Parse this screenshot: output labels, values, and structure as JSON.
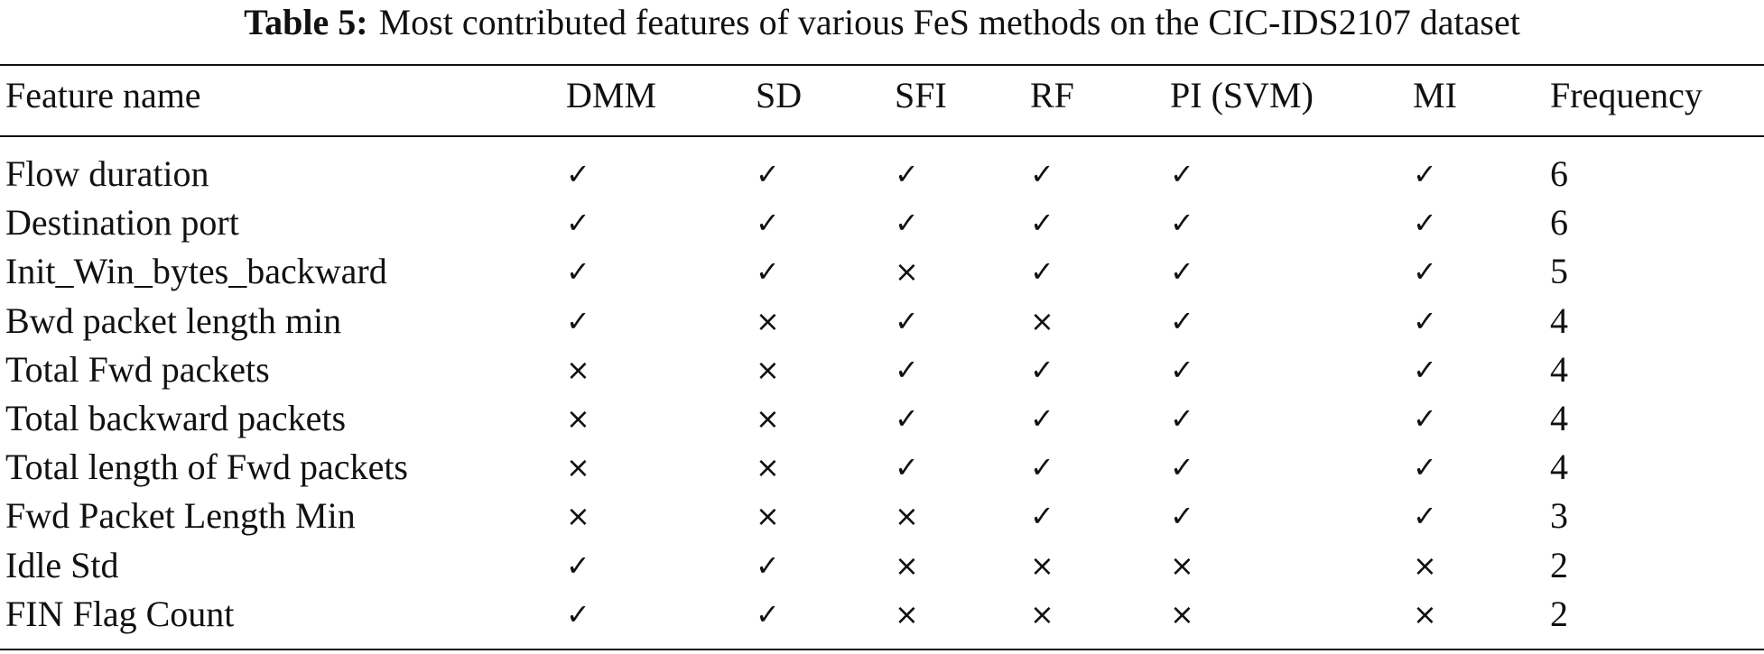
{
  "caption": {
    "label": "Table 5:",
    "text": "Most contributed features of various FeS methods on the CIC-IDS2107 dataset"
  },
  "table": {
    "header": [
      "Feature name",
      "DMM",
      "SD",
      "SFI",
      "RF",
      "PI (SVM)",
      "MI",
      "Frequency"
    ],
    "rows": [
      [
        "Flow duration",
        "✓",
        "✓",
        "✓",
        "✓",
        "✓",
        "✓",
        6
      ],
      [
        "Destination port",
        "✓",
        "✓",
        "✓",
        "✓",
        "✓",
        "✓",
        6
      ],
      [
        "Init_Win_bytes_backward",
        "✓",
        "✓",
        "×",
        "✓",
        "✓",
        "✓",
        5
      ],
      [
        "Bwd packet length min",
        "✓",
        "×",
        "✓",
        "×",
        "✓",
        "✓",
        4
      ],
      [
        "Total Fwd packets",
        "×",
        "×",
        "✓",
        "✓",
        "✓",
        "✓",
        4
      ],
      [
        "Total backward packets",
        "×",
        "×",
        "✓",
        "✓",
        "✓",
        "✓",
        4
      ],
      [
        "Total length of Fwd packets",
        "×",
        "×",
        "✓",
        "✓",
        "✓",
        "✓",
        4
      ],
      [
        "Fwd Packet Length Min",
        "×",
        "×",
        "×",
        "✓",
        "✓",
        "✓",
        3
      ],
      [
        "Idle Std",
        "✓",
        "✓",
        "×",
        "×",
        "×",
        "×",
        2
      ],
      [
        "FIN Flag Count",
        "✓",
        "✓",
        "×",
        "×",
        "×",
        "×",
        2
      ]
    ]
  }
}
